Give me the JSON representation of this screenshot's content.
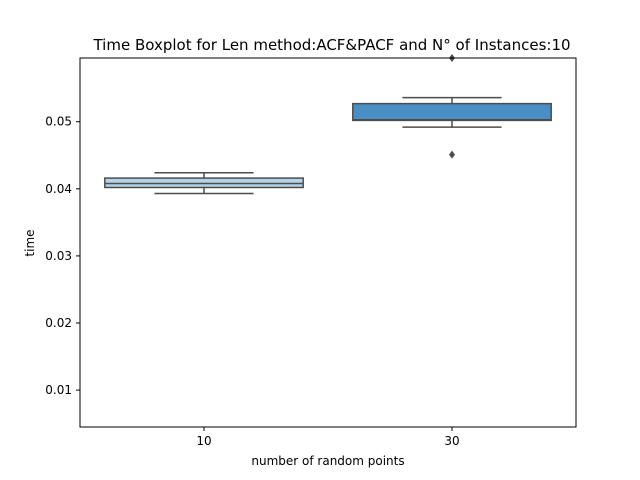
{
  "chart_data": {
    "type": "box",
    "title": "Time Boxplot for Len method:ACF&PACF and N° of Instances:10",
    "xlabel": "number of random points",
    "ylabel": "time",
    "categories": [
      "10",
      "30"
    ],
    "ylim": [
      0.0045,
      0.0595
    ],
    "yticks": [
      0.01,
      0.02,
      0.03,
      0.04,
      0.05
    ],
    "ytick_labels": [
      "0.01",
      "0.02",
      "0.03",
      "0.04",
      "0.05"
    ],
    "boxes": [
      {
        "category": "10",
        "whisker_low": 0.0393,
        "q1": 0.0402,
        "median": 0.0408,
        "q3": 0.0416,
        "whisker_high": 0.0424,
        "outliers": [],
        "color": "#b3d3e8"
      },
      {
        "category": "30",
        "whisker_low": 0.0492,
        "q1": 0.0502,
        "median": 0.0503,
        "q3": 0.0527,
        "whisker_high": 0.0536,
        "outliers": [
          0.0451,
          0.0595
        ],
        "color": "#4a8fc4"
      }
    ],
    "grid": false,
    "edge_color": "#4d4d4d"
  }
}
